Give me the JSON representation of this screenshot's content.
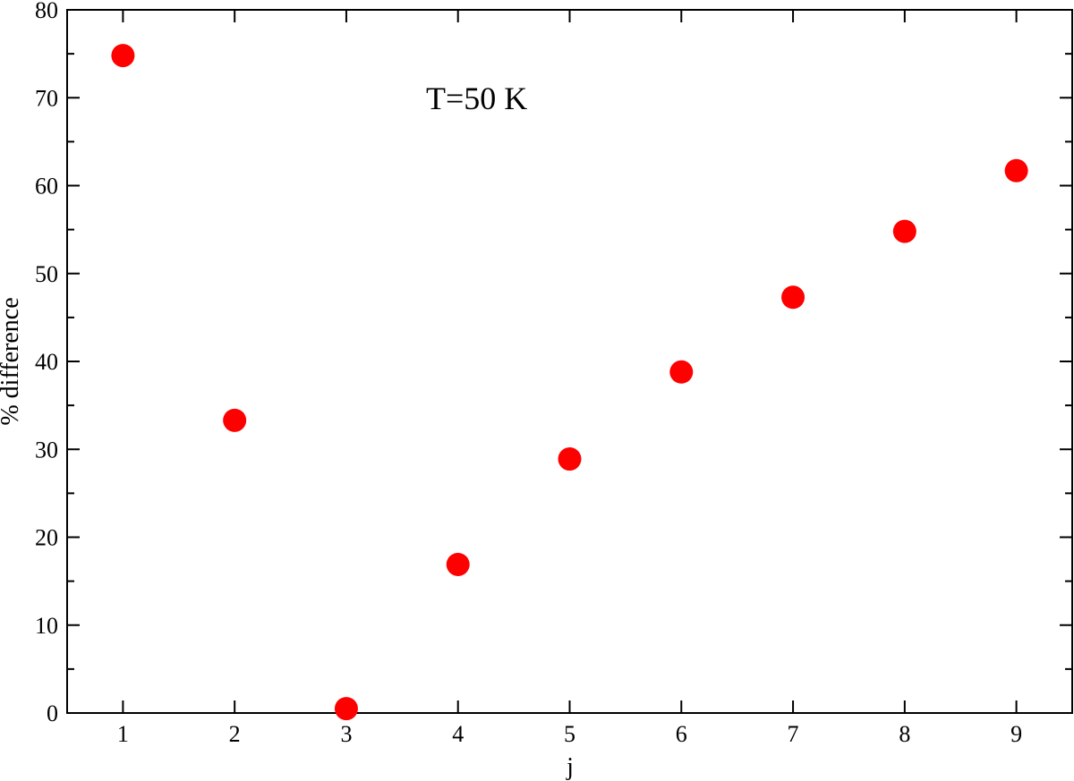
{
  "chart_data": {
    "type": "scatter",
    "xlabel": "j",
    "ylabel": "% difference",
    "annotation": "T=50 K",
    "xlim": [
      0.5,
      9.5
    ],
    "ylim": [
      0,
      80
    ],
    "xticks": [
      1,
      2,
      3,
      4,
      5,
      6,
      7,
      8,
      9
    ],
    "yticks": [
      0,
      10,
      20,
      30,
      40,
      50,
      60,
      70,
      80
    ],
    "x": [
      1,
      2,
      3,
      4,
      5,
      6,
      7,
      8,
      9
    ],
    "y": [
      74.8,
      33.3,
      0.5,
      16.9,
      28.9,
      38.8,
      47.3,
      54.8,
      61.7
    ],
    "marker_color": "#ff0000",
    "grid": false,
    "legend": false
  }
}
